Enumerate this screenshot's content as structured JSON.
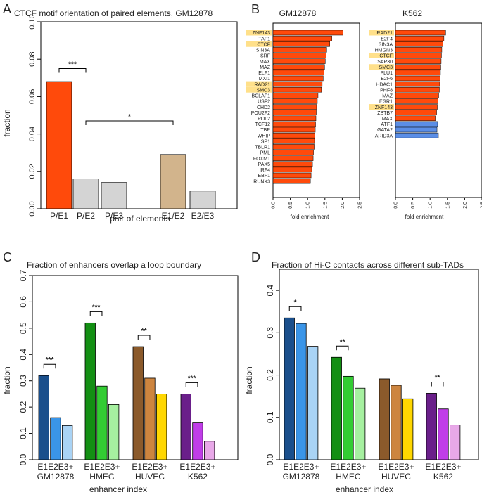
{
  "panel_labels": [
    "A",
    "B",
    "C",
    "D"
  ],
  "chart_data": [
    {
      "id": "A",
      "type": "bar",
      "title": "CTCF motif orientation of paired elements, GM12878",
      "xlabel": "pair of elements",
      "ylabel": "fraction",
      "ylim": [
        0,
        0.1
      ],
      "yticks": [
        "0.00",
        "0.02",
        "0.04",
        "0.06",
        "0.08",
        "0.10"
      ],
      "categories": [
        "P/E1",
        "P/E2",
        "P/E3",
        "E1/E2",
        "E2/E3"
      ],
      "values": [
        0.068,
        0.016,
        0.014,
        0.029,
        0.0095
      ],
      "colors": [
        "#ff4a0b",
        "#d4d4d4",
        "#d4d4d4",
        "#d2b48c",
        "#d4d4d4"
      ],
      "significance": [
        {
          "from": "P/E1",
          "to": "P/E2",
          "label": "***",
          "y": 0.075
        },
        {
          "from": "P/E2",
          "to": "E1/E2",
          "label": "*",
          "y": 0.047
        }
      ]
    },
    {
      "id": "B-left",
      "type": "bar",
      "orientation": "horizontal",
      "title": "GM12878",
      "xlabel": "fold enrichment",
      "xlim": [
        0,
        2.5
      ],
      "xticks": [
        "0.0",
        "0.5",
        "1.0",
        "1.5",
        "2.0",
        "2.5"
      ],
      "categories": [
        "ZNF143",
        "TAF1",
        "CTCF",
        "SIN3A",
        "SRF",
        "MAX",
        "MAZ",
        "ELF1",
        "MXI1",
        "RAD21",
        "SMC3",
        "BCLAF1",
        "USF2",
        "CHD2",
        "POU2F2",
        "POL2",
        "TCF12",
        "TBP",
        "WHIP",
        "SP1",
        "TBLR1",
        "PML",
        "FOXM1",
        "PAX5",
        "IRF4",
        "EBF1",
        "RUNX3"
      ],
      "values": [
        2.02,
        1.7,
        1.64,
        1.55,
        1.53,
        1.51,
        1.49,
        1.47,
        1.45,
        1.42,
        1.4,
        1.3,
        1.28,
        1.26,
        1.25,
        1.24,
        1.23,
        1.22,
        1.21,
        1.2,
        1.19,
        1.17,
        1.16,
        1.14,
        1.12,
        1.1,
        1.08
      ],
      "highlighted": [
        "ZNF143",
        "CTCF",
        "RAD21",
        "SMC3"
      ],
      "bar_color": "#ff4a0b",
      "highlight_color": "#ffe08a"
    },
    {
      "id": "B-right",
      "type": "bar",
      "orientation": "horizontal",
      "title": "K562",
      "xlabel": "fold enrichment",
      "xlim": [
        0,
        2.5
      ],
      "xticks": [
        "0.0",
        "0.5",
        "1.0",
        "1.5",
        "2.0",
        "2.5"
      ],
      "categories": [
        "RAD21",
        "E2F4",
        "SIN3A",
        "HMGN3",
        "CTCF",
        "SAP30",
        "SMC3",
        "PLU1",
        "E2F6",
        "HDAC1",
        "PHF8",
        "MAZ",
        "EGR1",
        "ZNF143",
        "ZBTB7",
        "MAX",
        "ATF1",
        "GATA2",
        "ARID3A"
      ],
      "values": [
        1.45,
        1.4,
        1.37,
        1.34,
        1.33,
        1.32,
        1.31,
        1.3,
        1.29,
        1.28,
        1.27,
        1.25,
        1.23,
        1.21,
        1.19,
        1.15,
        1.22,
        1.2,
        1.24
      ],
      "series_colors": [
        "#ff4a0b",
        "#ff4a0b",
        "#ff4a0b",
        "#ff4a0b",
        "#ff4a0b",
        "#ff4a0b",
        "#ff4a0b",
        "#ff4a0b",
        "#ff4a0b",
        "#ff4a0b",
        "#ff4a0b",
        "#ff4a0b",
        "#ff4a0b",
        "#ff4a0b",
        "#ff4a0b",
        "#ff4a0b",
        "#5b8ee6",
        "#5b8ee6",
        "#5b8ee6"
      ],
      "highlighted": [
        "RAD21",
        "CTCF",
        "SMC3",
        "ZNF143"
      ],
      "highlight_color": "#ffe08a"
    },
    {
      "id": "C",
      "type": "bar",
      "title": "Fraction of enhancers overlap a loop boundary",
      "xlabel": "enhancer index",
      "ylabel": "fraction",
      "ylim": [
        0,
        0.7
      ],
      "yticks": [
        "0.0",
        "0.1",
        "0.2",
        "0.3",
        "0.4",
        "0.5",
        "0.6",
        "0.7"
      ],
      "bar_labels": [
        "E1",
        "E2",
        "E3+"
      ],
      "groups": [
        {
          "name": "GM12878",
          "values": [
            0.32,
            0.16,
            0.13
          ],
          "colors": [
            "#1a4f8c",
            "#3a95e8",
            "#a9d3f5"
          ],
          "sig": "***"
        },
        {
          "name": "HMEC",
          "values": [
            0.52,
            0.28,
            0.21
          ],
          "colors": [
            "#138f13",
            "#33cc33",
            "#a6f0a0"
          ],
          "sig": "***"
        },
        {
          "name": "HUVEC",
          "values": [
            0.43,
            0.31,
            0.25
          ],
          "colors": [
            "#8b5a2b",
            "#cd853f",
            "#ffd700"
          ],
          "sig": "**"
        },
        {
          "name": "K562",
          "values": [
            0.25,
            0.14,
            0.07
          ],
          "colors": [
            "#6a1f8a",
            "#c03de8",
            "#e8a8e8"
          ],
          "sig": "***"
        }
      ]
    },
    {
      "id": "D",
      "type": "bar",
      "title": "Fraction of Hi-C contacts across different sub-TADs",
      "xlabel": "enhancer index",
      "ylabel": "fraction",
      "ylim": [
        0,
        0.45
      ],
      "yticks": [
        "0.0",
        "0.1",
        "0.2",
        "0.3",
        "0.4"
      ],
      "bar_labels": [
        "E1",
        "E2",
        "E3+"
      ],
      "groups": [
        {
          "name": "GM12878",
          "values": [
            0.335,
            0.322,
            0.268
          ],
          "colors": [
            "#1a4f8c",
            "#3a95e8",
            "#a9d3f5"
          ],
          "sig": "*"
        },
        {
          "name": "HMEC",
          "values": [
            0.242,
            0.197,
            0.169
          ],
          "colors": [
            "#138f13",
            "#33cc33",
            "#a6f0a0"
          ],
          "sig": "**"
        },
        {
          "name": "HUVEC",
          "values": [
            0.191,
            0.176,
            0.144
          ],
          "colors": [
            "#8b5a2b",
            "#cd853f",
            "#ffd700"
          ],
          "sig": ""
        },
        {
          "name": "K562",
          "values": [
            0.157,
            0.12,
            0.082
          ],
          "colors": [
            "#6a1f8a",
            "#c03de8",
            "#e8a8e8"
          ],
          "sig": "**"
        }
      ]
    }
  ]
}
